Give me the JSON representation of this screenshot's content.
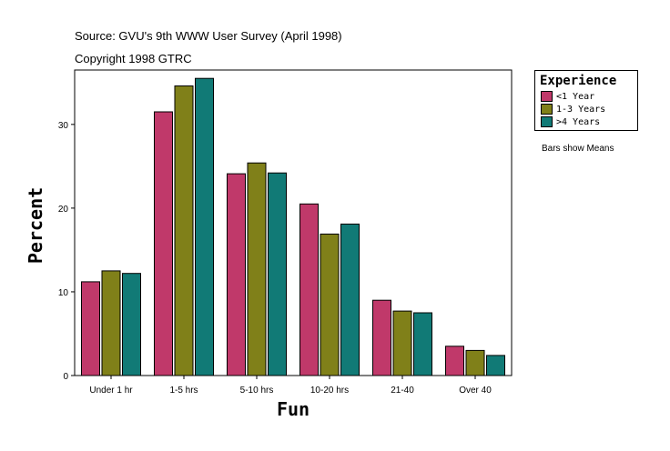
{
  "header": {
    "source": "Source: GVU's 9th WWW User Survey (April 1998)",
    "copyright": "Copyright 1998 GTRC"
  },
  "legend": {
    "title": "Experience",
    "items": [
      {
        "label": "<1 Year",
        "color": "#c0396a"
      },
      {
        "label": "1-3 Years",
        "color": "#808019"
      },
      {
        "label": ">4 Years",
        "color": "#117a76"
      }
    ]
  },
  "note": "Bars show Means",
  "chart_data": {
    "type": "bar",
    "xlabel": "Fun",
    "ylabel": "Percent",
    "categories": [
      "Under 1 hr",
      "1-5 hrs",
      "5-10 hrs",
      "10-20 hrs",
      "21-40",
      "Over 40"
    ],
    "series": [
      {
        "name": "<1 Year",
        "color": "#c0396a",
        "values": [
          11.2,
          31.5,
          24.1,
          20.5,
          9.0,
          3.5
        ]
      },
      {
        "name": "1-3 Years",
        "color": "#808019",
        "values": [
          12.5,
          34.6,
          25.4,
          16.9,
          7.7,
          3.0
        ]
      },
      {
        "name": ">4 Years",
        "color": "#117a76",
        "values": [
          12.2,
          35.5,
          24.2,
          18.1,
          7.5,
          2.4
        ]
      }
    ],
    "ylim": [
      0,
      36.5
    ],
    "yticks": [
      0,
      10,
      20,
      30
    ],
    "grid": false,
    "legend_position": "right"
  }
}
